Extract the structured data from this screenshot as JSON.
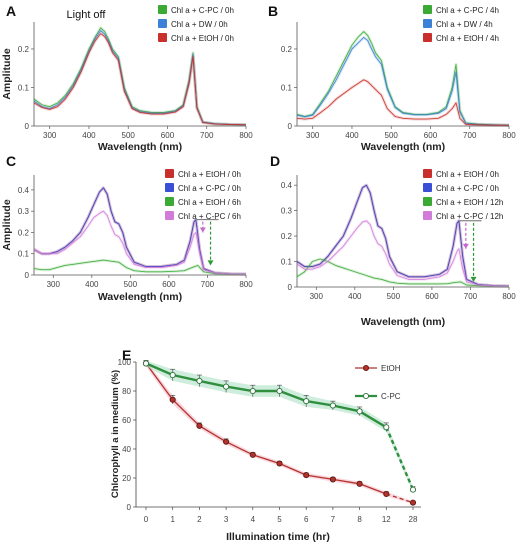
{
  "chart_data": [
    {
      "panel": "A",
      "type": "line",
      "annotation": "Light off",
      "xlabel": "Wavelength (nm)",
      "ylabel": "Amplitude",
      "xlim": [
        260,
        800
      ],
      "ylim": [
        0,
        0.27
      ],
      "xticks": [
        300,
        400,
        500,
        600,
        700,
        800
      ],
      "yticks": [
        0,
        0.1,
        0.2
      ],
      "legend_position": "top-right",
      "series": [
        {
          "name": "Chl a + C-PC / 0h",
          "color": "#3aaa35",
          "x": [
            260,
            280,
            300,
            320,
            340,
            360,
            380,
            400,
            415,
            430,
            440,
            450,
            460,
            475,
            490,
            510,
            530,
            560,
            590,
            620,
            640,
            655,
            665,
            675,
            690,
            720,
            760,
            800
          ],
          "y": [
            0.07,
            0.055,
            0.05,
            0.06,
            0.08,
            0.11,
            0.15,
            0.2,
            0.23,
            0.255,
            0.245,
            0.225,
            0.2,
            0.18,
            0.1,
            0.05,
            0.04,
            0.035,
            0.035,
            0.04,
            0.055,
            0.12,
            0.19,
            0.05,
            0.01,
            0.006,
            0.004,
            0.003
          ]
        },
        {
          "name": "Chl a + DW    / 0h",
          "color": "#3b82d6",
          "x": [
            260,
            280,
            300,
            320,
            340,
            360,
            380,
            400,
            415,
            430,
            440,
            450,
            460,
            475,
            490,
            510,
            530,
            560,
            590,
            620,
            640,
            655,
            665,
            675,
            690,
            720,
            760,
            800
          ],
          "y": [
            0.065,
            0.05,
            0.045,
            0.055,
            0.075,
            0.105,
            0.145,
            0.195,
            0.225,
            0.248,
            0.238,
            0.22,
            0.195,
            0.175,
            0.095,
            0.047,
            0.037,
            0.033,
            0.033,
            0.038,
            0.052,
            0.115,
            0.185,
            0.048,
            0.01,
            0.006,
            0.004,
            0.003
          ]
        },
        {
          "name": "Chl a + EtOH / 0h",
          "color": "#c9302c",
          "x": [
            260,
            280,
            300,
            320,
            340,
            360,
            380,
            400,
            415,
            430,
            440,
            450,
            460,
            475,
            490,
            510,
            530,
            560,
            590,
            620,
            640,
            655,
            665,
            675,
            690,
            720,
            760,
            800
          ],
          "y": [
            0.06,
            0.048,
            0.043,
            0.05,
            0.07,
            0.1,
            0.14,
            0.19,
            0.22,
            0.24,
            0.232,
            0.215,
            0.19,
            0.17,
            0.09,
            0.045,
            0.035,
            0.031,
            0.031,
            0.036,
            0.05,
            0.11,
            0.18,
            0.046,
            0.009,
            0.005,
            0.004,
            0.003
          ]
        }
      ]
    },
    {
      "panel": "B",
      "type": "line",
      "xlabel": "Wavelength (nm)",
      "ylabel": "",
      "xlim": [
        260,
        800
      ],
      "ylim": [
        0,
        0.27
      ],
      "xticks": [
        300,
        400,
        500,
        600,
        700,
        800
      ],
      "yticks": [
        0,
        0.1,
        0.2
      ],
      "legend_position": "top-right",
      "series": [
        {
          "name": "Chl a + C-PC / 4h",
          "color": "#3aaa35",
          "x": [
            260,
            280,
            300,
            320,
            340,
            360,
            380,
            400,
            415,
            430,
            440,
            450,
            460,
            475,
            490,
            510,
            530,
            560,
            590,
            620,
            640,
            655,
            665,
            675,
            690,
            720,
            760,
            800
          ],
          "y": [
            0.03,
            0.025,
            0.03,
            0.06,
            0.09,
            0.13,
            0.17,
            0.21,
            0.23,
            0.245,
            0.235,
            0.215,
            0.19,
            0.17,
            0.1,
            0.05,
            0.035,
            0.03,
            0.03,
            0.035,
            0.05,
            0.1,
            0.16,
            0.04,
            0.008,
            0.005,
            0.003,
            0.002
          ]
        },
        {
          "name": "Chl a + DW    / 4h",
          "color": "#3b82d6",
          "x": [
            260,
            280,
            300,
            320,
            340,
            360,
            380,
            400,
            415,
            430,
            440,
            450,
            460,
            475,
            490,
            510,
            530,
            560,
            590,
            620,
            640,
            655,
            665,
            675,
            690,
            720,
            760,
            800
          ],
          "y": [
            0.028,
            0.024,
            0.028,
            0.055,
            0.085,
            0.12,
            0.16,
            0.2,
            0.215,
            0.23,
            0.222,
            0.2,
            0.18,
            0.16,
            0.095,
            0.048,
            0.033,
            0.029,
            0.029,
            0.033,
            0.045,
            0.09,
            0.14,
            0.036,
            0.007,
            0.004,
            0.003,
            0.002
          ]
        },
        {
          "name": "Chl a + EtOH / 4h",
          "color": "#c9302c",
          "x": [
            260,
            280,
            300,
            320,
            340,
            360,
            380,
            400,
            415,
            430,
            440,
            450,
            460,
            475,
            490,
            510,
            530,
            560,
            590,
            620,
            640,
            655,
            665,
            675,
            690,
            720,
            760,
            800
          ],
          "y": [
            0.02,
            0.018,
            0.02,
            0.035,
            0.05,
            0.07,
            0.085,
            0.1,
            0.11,
            0.12,
            0.115,
            0.105,
            0.095,
            0.08,
            0.045,
            0.025,
            0.02,
            0.018,
            0.018,
            0.02,
            0.03,
            0.045,
            0.06,
            0.02,
            0.004,
            0.003,
            0.002,
            0.002
          ]
        }
      ]
    },
    {
      "panel": "C",
      "type": "line",
      "xlabel": "Wavelength (nm)",
      "ylabel": "Amplitude",
      "xlim": [
        250,
        800
      ],
      "ylim": [
        0,
        0.47
      ],
      "xticks": [
        300,
        400,
        500,
        600,
        700,
        800
      ],
      "yticks": [
        0,
        0.1,
        0.2,
        0.3,
        0.4
      ],
      "legend_position": "top-right",
      "series": [
        {
          "name": "Chl a + EtOH / 0h",
          "color": "#c9302c",
          "x": [
            250,
            270,
            290,
            310,
            330,
            350,
            370,
            390,
            405,
            420,
            430,
            440,
            450,
            460,
            470,
            480,
            490,
            510,
            540,
            580,
            620,
            640,
            655,
            665,
            670,
            680,
            690,
            720,
            760,
            800
          ],
          "y": [
            0.12,
            0.1,
            0.1,
            0.11,
            0.13,
            0.16,
            0.2,
            0.27,
            0.33,
            0.39,
            0.41,
            0.38,
            0.3,
            0.25,
            0.24,
            0.2,
            0.13,
            0.06,
            0.04,
            0.04,
            0.05,
            0.07,
            0.16,
            0.25,
            0.26,
            0.12,
            0.03,
            0.01,
            0.005,
            0.004
          ]
        },
        {
          "name": "Chl a + C-PC / 0h",
          "color": "#3b4ed6",
          "x": [
            250,
            270,
            290,
            310,
            330,
            350,
            370,
            390,
            405,
            420,
            430,
            440,
            450,
            460,
            470,
            480,
            490,
            510,
            540,
            580,
            620,
            640,
            655,
            665,
            670,
            680,
            690,
            720,
            760,
            800
          ],
          "y": [
            0.12,
            0.1,
            0.1,
            0.11,
            0.13,
            0.16,
            0.2,
            0.27,
            0.33,
            0.39,
            0.41,
            0.38,
            0.3,
            0.25,
            0.24,
            0.2,
            0.13,
            0.06,
            0.04,
            0.04,
            0.05,
            0.07,
            0.16,
            0.25,
            0.26,
            0.12,
            0.03,
            0.01,
            0.005,
            0.004
          ]
        },
        {
          "name": "Chl a + EtOH / 6h",
          "color": "#3aaa35",
          "x": [
            250,
            270,
            290,
            310,
            330,
            350,
            370,
            390,
            410,
            430,
            450,
            470,
            490,
            510,
            540,
            580,
            620,
            640,
            660,
            675,
            690,
            720,
            760,
            800
          ],
          "y": [
            0.03,
            0.025,
            0.025,
            0.035,
            0.045,
            0.05,
            0.055,
            0.06,
            0.065,
            0.07,
            0.065,
            0.06,
            0.035,
            0.02,
            0.015,
            0.015,
            0.018,
            0.02,
            0.035,
            0.045,
            0.015,
            0.006,
            0.004,
            0.003
          ]
        },
        {
          "name": "Chl a + C-PC / 6h",
          "color": "#d27cd9",
          "x": [
            250,
            270,
            290,
            310,
            330,
            350,
            370,
            390,
            405,
            420,
            430,
            440,
            450,
            460,
            470,
            480,
            490,
            510,
            540,
            580,
            620,
            640,
            655,
            665,
            670,
            680,
            690,
            720,
            760,
            800
          ],
          "y": [
            0.12,
            0.1,
            0.1,
            0.1,
            0.12,
            0.15,
            0.18,
            0.23,
            0.27,
            0.29,
            0.3,
            0.28,
            0.23,
            0.19,
            0.18,
            0.15,
            0.1,
            0.05,
            0.035,
            0.035,
            0.045,
            0.06,
            0.13,
            0.19,
            0.2,
            0.1,
            0.025,
            0.009,
            0.005,
            0.004
          ]
        }
      ]
    },
    {
      "panel": "D",
      "type": "line",
      "xlabel": "Wavelength (nm)",
      "ylabel": "",
      "xlim": [
        250,
        800
      ],
      "ylim": [
        0,
        0.44
      ],
      "xticks": [
        300,
        400,
        500,
        600,
        700,
        800
      ],
      "yticks": [
        0,
        0.1,
        0.2,
        0.3,
        0.4
      ],
      "legend_position": "top-right",
      "series": [
        {
          "name": "Chl a + EtOH / 0h",
          "color": "#c9302c",
          "x": [
            250,
            270,
            290,
            310,
            330,
            350,
            370,
            390,
            405,
            420,
            430,
            440,
            450,
            460,
            470,
            480,
            490,
            510,
            540,
            580,
            620,
            640,
            655,
            665,
            670,
            680,
            690,
            720,
            760,
            800
          ],
          "y": [
            0.1,
            0.08,
            0.08,
            0.09,
            0.12,
            0.16,
            0.2,
            0.27,
            0.33,
            0.39,
            0.4,
            0.37,
            0.3,
            0.24,
            0.23,
            0.19,
            0.12,
            0.06,
            0.04,
            0.04,
            0.05,
            0.07,
            0.16,
            0.25,
            0.26,
            0.12,
            0.03,
            0.01,
            0.005,
            0.004
          ]
        },
        {
          "name": "Chl a + C-PC / 0h",
          "color": "#3b4ed6",
          "x": [
            250,
            270,
            290,
            310,
            330,
            350,
            370,
            390,
            405,
            420,
            430,
            440,
            450,
            460,
            470,
            480,
            490,
            510,
            540,
            580,
            620,
            640,
            655,
            665,
            670,
            680,
            690,
            720,
            760,
            800
          ],
          "y": [
            0.1,
            0.08,
            0.08,
            0.09,
            0.12,
            0.16,
            0.2,
            0.27,
            0.33,
            0.39,
            0.4,
            0.37,
            0.3,
            0.24,
            0.23,
            0.19,
            0.12,
            0.06,
            0.04,
            0.04,
            0.05,
            0.07,
            0.16,
            0.25,
            0.26,
            0.12,
            0.03,
            0.01,
            0.005,
            0.004
          ]
        },
        {
          "name": "Chl a + EtOH / 12h",
          "color": "#3aaa35",
          "x": [
            250,
            270,
            290,
            310,
            330,
            350,
            370,
            390,
            410,
            430,
            450,
            470,
            490,
            510,
            540,
            580,
            620,
            640,
            660,
            675,
            690,
            720,
            760,
            800
          ],
          "y": [
            0.04,
            0.06,
            0.1,
            0.11,
            0.1,
            0.085,
            0.075,
            0.065,
            0.055,
            0.045,
            0.035,
            0.03,
            0.02,
            0.015,
            0.012,
            0.012,
            0.012,
            0.013,
            0.018,
            0.02,
            0.008,
            0.005,
            0.003,
            0.002
          ]
        },
        {
          "name": "Chl a + C-PC / 12h",
          "color": "#d27cd9",
          "x": [
            250,
            270,
            290,
            310,
            330,
            350,
            370,
            390,
            405,
            420,
            430,
            440,
            450,
            460,
            470,
            480,
            490,
            510,
            540,
            580,
            620,
            640,
            655,
            665,
            670,
            680,
            690,
            720,
            760,
            800
          ],
          "y": [
            0.09,
            0.07,
            0.07,
            0.08,
            0.1,
            0.13,
            0.16,
            0.2,
            0.23,
            0.255,
            0.26,
            0.245,
            0.2,
            0.17,
            0.16,
            0.13,
            0.09,
            0.045,
            0.03,
            0.03,
            0.04,
            0.055,
            0.1,
            0.14,
            0.15,
            0.07,
            0.02,
            0.008,
            0.004,
            0.003
          ]
        }
      ]
    },
    {
      "panel": "E",
      "type": "line",
      "xlabel": "Illumination time (hr)",
      "ylabel": "Chlorophyll a in medium (%)",
      "ylim": [
        0,
        100
      ],
      "yticks": [
        0,
        20,
        40,
        60,
        80,
        100
      ],
      "categories": [
        "0",
        "1",
        "2",
        "3",
        "4",
        "5",
        "6",
        "7",
        "8",
        "12",
        "28"
      ],
      "legend_position": "top-right",
      "series": [
        {
          "name": "EtOH",
          "color": "#b5322b",
          "values": [
            99,
            74,
            56,
            45,
            36,
            30,
            22,
            19,
            16,
            9,
            3
          ],
          "errors": [
            2,
            3,
            2,
            2,
            1.5,
            1.5,
            1.5,
            1.5,
            1.5,
            1.5,
            1
          ]
        },
        {
          "name": "C-PC",
          "color": "#2f8f3f",
          "values": [
            99,
            91,
            87,
            83,
            80,
            80,
            73,
            70,
            66,
            55,
            12
          ],
          "errors": [
            2,
            4,
            4,
            4,
            4,
            4,
            4,
            3,
            3,
            3,
            2
          ]
        }
      ]
    }
  ]
}
